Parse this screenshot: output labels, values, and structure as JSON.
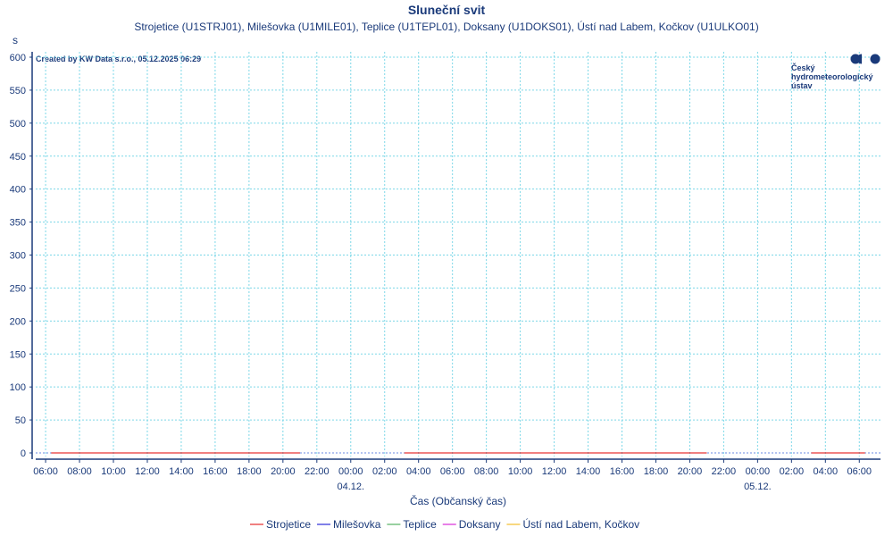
{
  "chart_data": {
    "type": "line",
    "title": "Sluneční svit",
    "subtitle": "Strojetice (U1STRJ01), Milešovka (U1MILE01), Teplice (U1TEPL01), Doksany (U1DOKS01), Ústí nad Labem, Kočkov (U1ULKO01)",
    "ylabel": "s",
    "xlabel": "Čas (Občanský čas)",
    "ylim": [
      0,
      600
    ],
    "yticks": [
      0,
      50,
      100,
      150,
      200,
      250,
      300,
      350,
      400,
      450,
      500,
      550,
      600
    ],
    "xlim": [
      "2025-12-03T05:25",
      "2025-12-05T07:15"
    ],
    "xtick_labels": [
      "06:00",
      "08:00",
      "10:00",
      "12:00",
      "14:00",
      "16:00",
      "18:00",
      "20:00",
      "22:00",
      "00:00",
      "02:00",
      "04:00",
      "06:00",
      "08:00",
      "10:00",
      "12:00",
      "14:00",
      "16:00",
      "18:00",
      "20:00",
      "22:00",
      "00:00",
      "02:00",
      "04:00",
      "06:00"
    ],
    "date_labels": [
      {
        "label": "04.12.",
        "at": "2025-12-04T00:00"
      },
      {
        "label": "05.12.",
        "at": "2025-12-05T00:00"
      }
    ],
    "grid": true,
    "legend_position": "bottom",
    "segments": [
      {
        "from": "2025-12-03T06:20",
        "to": "2025-12-03T21:00",
        "value": 0
      },
      {
        "from": "2025-12-04T03:10",
        "to": "2025-12-04T21:00",
        "value": 0
      },
      {
        "from": "2025-12-05T03:10",
        "to": "2025-12-05T06:20",
        "value": 0
      }
    ],
    "series": [
      {
        "name": "Strojetice",
        "color": "#e00000",
        "value": 0
      },
      {
        "name": "Milešovka",
        "color": "#0000d0",
        "value": 0
      },
      {
        "name": "Teplice",
        "color": "#30a040",
        "value": 0
      },
      {
        "name": "Doksany",
        "color": "#d000d0",
        "value": 0
      },
      {
        "name": "Ústí nad Labem, Kočkov",
        "color": "#f0b000",
        "value": 0
      }
    ]
  },
  "credit": "Created by KW Data s.r.o., 05.12.2025 06:29",
  "logo": {
    "text_lines": [
      "Český",
      "hydrometeorologický",
      "ústav"
    ]
  }
}
